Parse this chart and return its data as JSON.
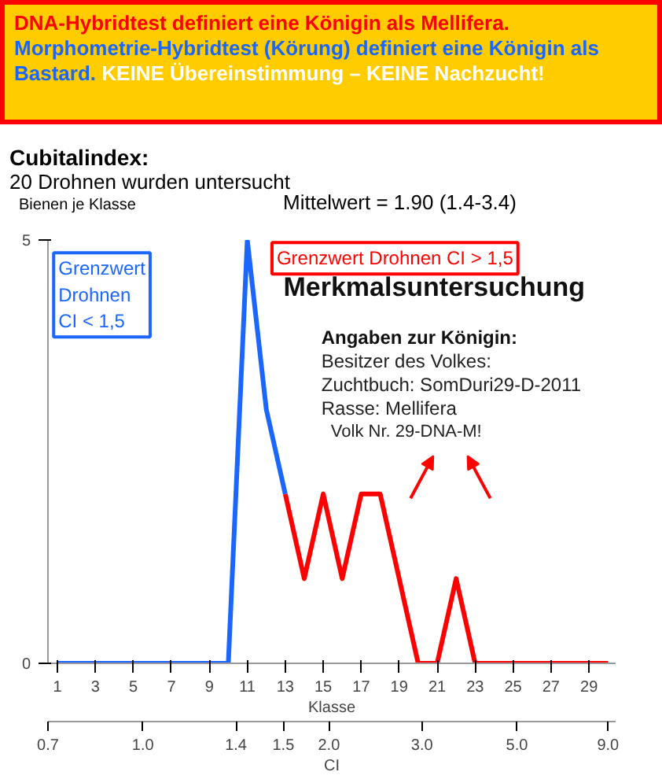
{
  "chart_data": {
    "type": "line",
    "title": "DNA-Hybridtest definiert eine Königin als Mellifera.",
    "subtitle": "Morphometrie-Hybridtest (Körung) definiert eine Königin als Bastard.",
    "annotations": [
      "KEINE Übereinstimmung – KEINE Nachzucht!",
      "Cubitalindex:",
      "20  Drohnen wurden untersucht",
      "Mittelwert = 1.90 (1.4-3.4)",
      "Grenzwert Drohnen CI > 1,5",
      "Grenzwert\nDrohnen\nCI < 1,5",
      "Merkmalsuntersuchung",
      "Angaben zur Königin:",
      "Besitzer des Volkes:",
      "Zuchtbuch: SomDuri29-D-2011",
      "Rasse: Mellifera",
      "Volk Nr. 29-DNA-M!",
      "CI",
      "0.7",
      "1.0",
      "1.4",
      "1.5",
      "2.0",
      "3.0",
      "5.0",
      "9.0"
    ],
    "xlabel": "Klasse",
    "ylabel": "Bienen je Klasse",
    "xlim": [
      0.5,
      30.4
    ],
    "xticks": [
      1,
      3,
      5,
      7,
      9,
      11,
      13,
      15,
      17,
      19,
      21,
      23,
      25,
      27,
      29
    ],
    "ylim": [
      0,
      5
    ],
    "yticks": [
      0,
      5
    ],
    "series": [
      {
        "color": "#1a66ff",
        "x": [
          1,
          2,
          3,
          4,
          5,
          6,
          7,
          8,
          9,
          10,
          11,
          12,
          13
        ],
        "values": [
          0,
          0,
          0,
          0,
          0,
          0,
          0,
          0,
          0,
          0,
          5,
          3,
          2
        ]
      },
      {
        "color": "#ff0000",
        "x": [
          13,
          14,
          15,
          16,
          17,
          18,
          19,
          20,
          21,
          22,
          23,
          24,
          25,
          26,
          27,
          28,
          29,
          30
        ],
        "values": [
          2,
          1,
          2,
          1,
          2,
          2,
          1,
          0,
          0,
          1,
          0,
          0,
          0,
          0,
          0,
          0,
          0,
          0
        ]
      }
    ],
    "grid": false,
    "marker": "none",
    "line_style": "solid"
  }
}
